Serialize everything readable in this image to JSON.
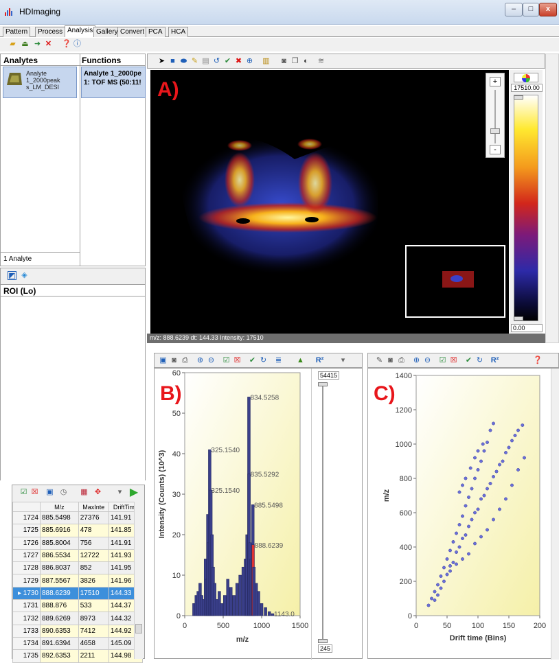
{
  "window": {
    "title": "HDImaging",
    "buttons": [
      "–",
      "□",
      "x"
    ]
  },
  "tabs": [
    "Pattern",
    "Process",
    "Analysis",
    "Gallery",
    "Convert",
    "PCA",
    "HCA"
  ],
  "active_tab": "Analysis",
  "analytes_panel": {
    "header": "Analytes",
    "item_label": "Analyte 1_2000peak s_LM_DESI",
    "status": "1 Analyte"
  },
  "functions_panel": {
    "header": "Functions",
    "item_line1": "Analyte 1_2000pe",
    "item_line2": "1: TOF MS (50:11!"
  },
  "roi_panel": {
    "header": "ROI (Lo)"
  },
  "image_view": {
    "label": "A)",
    "status": "m/z: 888.6239 dt: 144.33 Intensity: 17510",
    "zoom_plus": "+",
    "zoom_minus": "-",
    "colorbar_max": "17510.00",
    "colorbar_min": "0.00"
  },
  "table": {
    "columns": [
      "",
      "M/z",
      "MaxInte",
      "DriftTime"
    ],
    "selected_row": "1730",
    "rows": [
      [
        "1724",
        "885.5498",
        "27376",
        "141.91"
      ],
      [
        "1725",
        "885.6916",
        "478",
        "141.85"
      ],
      [
        "1726",
        "885.8004",
        "756",
        "141.91"
      ],
      [
        "1727",
        "886.5534",
        "12722",
        "141.93"
      ],
      [
        "1728",
        "886.8037",
        "852",
        "141.95"
      ],
      [
        "1729",
        "887.5567",
        "3826",
        "141.96"
      ],
      [
        "1730",
        "888.6239",
        "17510",
        "144.33"
      ],
      [
        "1731",
        "888.876",
        "533",
        "144.37"
      ],
      [
        "1732",
        "889.6269",
        "8973",
        "144.32"
      ],
      [
        "1733",
        "890.6353",
        "7412",
        "144.92"
      ],
      [
        "1734",
        "891.6394",
        "4658",
        "145.09"
      ],
      [
        "1735",
        "892.6353",
        "2211",
        "144.98"
      ]
    ]
  },
  "spectrum": {
    "label": "B)",
    "slider_max": "54415",
    "slider_min": "245",
    "chart_data": {
      "type": "bar",
      "xlabel": "m/z",
      "ylabel": "Intensity (Counts) (10^3)",
      "xlim": [
        0,
        1500
      ],
      "ylim": [
        0,
        60
      ],
      "xticks": [
        0,
        500,
        1000,
        1500
      ],
      "yticks": [
        0,
        10,
        20,
        30,
        40,
        50,
        60
      ],
      "peak_labels": [
        {
          "x": 834.5258,
          "y": 54,
          "text": "834.5258"
        },
        {
          "x": 325.154,
          "y": 41,
          "text": "325.1540"
        },
        {
          "x": 835.5292,
          "y": 35,
          "text": "835.5292"
        },
        {
          "x": 325.154,
          "y": 31,
          "text": "325.1540"
        },
        {
          "x": 885.5498,
          "y": 27.4,
          "text": "885.5498"
        },
        {
          "x": 888.6239,
          "y": 17.5,
          "text": "888.6239"
        },
        {
          "x": 1143.0,
          "y": 0.5,
          "text": "1143.0"
        }
      ],
      "values": [
        [
          120,
          3
        ],
        [
          150,
          5
        ],
        [
          175,
          6
        ],
        [
          200,
          8
        ],
        [
          220,
          5
        ],
        [
          245,
          4
        ],
        [
          270,
          14
        ],
        [
          285,
          9
        ],
        [
          300,
          25
        ],
        [
          310,
          18
        ],
        [
          325.154,
          41
        ],
        [
          340,
          31
        ],
        [
          355,
          20
        ],
        [
          370,
          12
        ],
        [
          390,
          8
        ],
        [
          420,
          4
        ],
        [
          450,
          6
        ],
        [
          480,
          3
        ],
        [
          520,
          5
        ],
        [
          560,
          9
        ],
        [
          600,
          7
        ],
        [
          640,
          5
        ],
        [
          680,
          8
        ],
        [
          720,
          10
        ],
        [
          760,
          12
        ],
        [
          790,
          14
        ],
        [
          810,
          20
        ],
        [
          834.5258,
          54
        ],
        [
          835.5292,
          35
        ],
        [
          850,
          18
        ],
        [
          865,
          14
        ],
        [
          885.5498,
          27.4
        ],
        [
          888.6239,
          17.5
        ],
        [
          900,
          12
        ],
        [
          930,
          8
        ],
        [
          960,
          6
        ],
        [
          1000,
          3
        ],
        [
          1050,
          2
        ],
        [
          1100,
          1
        ],
        [
          1143,
          0.5
        ]
      ]
    }
  },
  "driftplot": {
    "label": "C)",
    "chart_data": {
      "type": "scatter",
      "xlabel": "Drift time (Bins)",
      "ylabel": "m/z",
      "xlim": [
        0,
        200
      ],
      "ylim": [
        0,
        1400
      ],
      "xticks": [
        0,
        50,
        100,
        150,
        200
      ],
      "yticks": [
        0,
        200,
        400,
        600,
        800,
        1000,
        1200,
        1400
      ],
      "series": [
        {
          "values": [
            [
              20,
              60
            ],
            [
              25,
              100
            ],
            [
              30,
              140
            ],
            [
              35,
              180
            ],
            [
              40,
              230
            ],
            [
              45,
              280
            ],
            [
              50,
              330
            ],
            [
              55,
              380
            ],
            [
              60,
              430
            ],
            [
              65,
              480
            ],
            [
              70,
              530
            ],
            [
              75,
              580
            ],
            [
              80,
              640
            ],
            [
              85,
              690
            ],
            [
              90,
              740
            ],
            [
              95,
              800
            ],
            [
              100,
              850
            ],
            [
              105,
              900
            ],
            [
              110,
              960
            ],
            [
              115,
              1010
            ],
            [
              120,
              1080
            ],
            [
              125,
              1120
            ],
            [
              35,
              120
            ],
            [
              45,
              200
            ],
            [
              55,
              290
            ],
            [
              65,
              370
            ],
            [
              75,
              450
            ],
            [
              85,
              520
            ],
            [
              95,
              600
            ],
            [
              105,
              680
            ],
            [
              115,
              740
            ],
            [
              125,
              810
            ],
            [
              135,
              880
            ],
            [
              145,
              950
            ],
            [
              155,
              1020
            ],
            [
              165,
              1080
            ],
            [
              172,
              1110
            ],
            [
              30,
              90
            ],
            [
              40,
              160
            ],
            [
              50,
              240
            ],
            [
              60,
              310
            ],
            [
              70,
              400
            ],
            [
              80,
              470
            ],
            [
              90,
              560
            ],
            [
              100,
              620
            ],
            [
              110,
              700
            ],
            [
              120,
              770
            ],
            [
              130,
              840
            ],
            [
              140,
              900
            ],
            [
              150,
              980
            ],
            [
              160,
              1050
            ],
            [
              70,
              720
            ],
            [
              75,
              760
            ],
            [
              80,
              800
            ],
            [
              88,
              860
            ],
            [
              95,
              920
            ],
            [
              100,
              960
            ],
            [
              108,
              1000
            ],
            [
              55,
              260
            ],
            [
              65,
              300
            ],
            [
              75,
              330
            ],
            [
              85,
              360
            ],
            [
              95,
              420
            ],
            [
              105,
              460
            ],
            [
              115,
              500
            ],
            [
              125,
              560
            ],
            [
              135,
              620
            ],
            [
              145,
              680
            ],
            [
              155,
              760
            ],
            [
              165,
              850
            ],
            [
              175,
              920
            ]
          ]
        }
      ]
    }
  }
}
